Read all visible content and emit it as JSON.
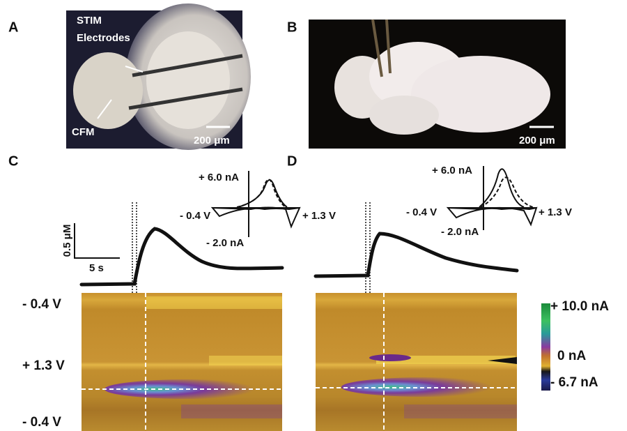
{
  "panels": {
    "A": {
      "label": "A",
      "stim": "STIM",
      "electrodes": "Electrodes",
      "cfm": "CFM",
      "scale": "200 μm"
    },
    "B": {
      "label": "B",
      "scale": "200 μm"
    },
    "C": {
      "label": "C",
      "cv_top": "+ 6.0 nA",
      "cv_left": "- 0.4 V",
      "cv_right": "+ 1.3 V",
      "cv_bottom": "- 2.0 nA",
      "conc_scale": "0.5 μM",
      "time_scale": "5 s"
    },
    "D": {
      "label": "D",
      "cv_top": "+ 6.0 nA",
      "cv_left": "- 0.4 V",
      "cv_right": "+ 1.3 V",
      "cv_bottom": "- 2.0 nA"
    }
  },
  "potential_axis": [
    "- 0.4 V",
    "+ 1.3 V",
    "- 0.4 V"
  ],
  "colorbar": [
    "+ 10.0 nA",
    "0 nA",
    "- 6.7 nA"
  ]
}
